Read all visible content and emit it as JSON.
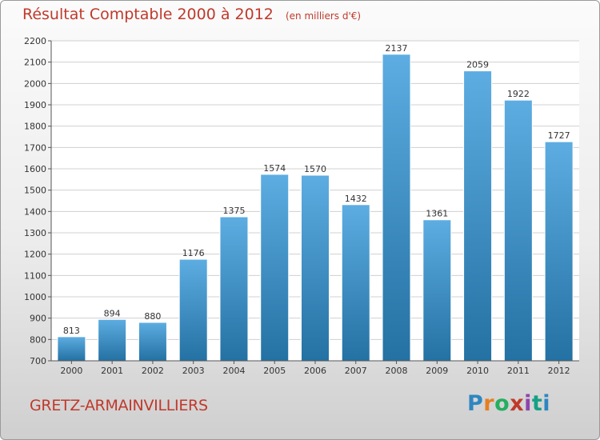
{
  "title": "Résultat Comptable 2000 à 2012",
  "subtitle": "(en milliers d'€)",
  "place_name": "GRETZ-ARMAINVILLIERS",
  "logo_text": "Proxiti",
  "colors": {
    "bar_light": "#5dade2",
    "bar_dark": "#2471a3",
    "title": "#c0392b",
    "grid": "#d0d0d0"
  },
  "chart_data": {
    "type": "bar",
    "title": "Résultat Comptable 2000 à 2012",
    "subtitle": "(en milliers d'€)",
    "categories": [
      "2000",
      "2001",
      "2002",
      "2003",
      "2004",
      "2005",
      "2006",
      "2007",
      "2008",
      "2009",
      "2010",
      "2011",
      "2012"
    ],
    "values": [
      813,
      894,
      880,
      1176,
      1375,
      1574,
      1570,
      1432,
      2137,
      1361,
      2059,
      1922,
      1727
    ],
    "ylim": [
      700,
      2200
    ],
    "yticks": [
      700,
      800,
      900,
      1000,
      1100,
      1200,
      1300,
      1400,
      1500,
      1600,
      1700,
      1800,
      1900,
      2000,
      2100,
      2200
    ],
    "grid": true,
    "data_labels": true
  }
}
